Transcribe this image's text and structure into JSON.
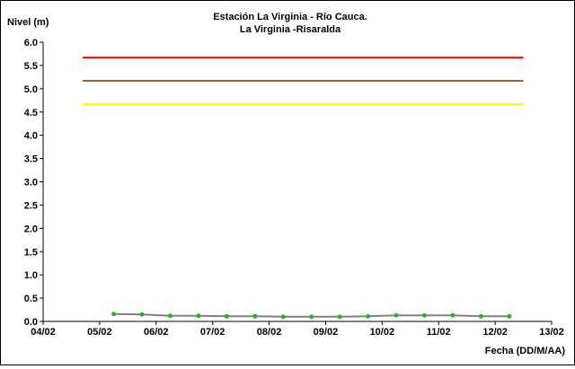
{
  "chart_data": {
    "type": "line",
    "title": "Estación La Virginia  - Río Cauca.",
    "subtitle": "La Virginia -Risaralda",
    "ylabel": "Nivel (m)",
    "xlabel": "Fecha (DD/M/AA)",
    "ylim": [
      0.0,
      6.0
    ],
    "y_ticks": [
      "0.0",
      "0.5",
      "1.0",
      "1.5",
      "2.0",
      "2.5",
      "3.0",
      "3.5",
      "4.0",
      "4.5",
      "5.0",
      "5.5",
      "6.0"
    ],
    "x_ticks": [
      "04/02",
      "05/02",
      "06/02",
      "07/02",
      "08/02",
      "09/02",
      "10/02",
      "11/02",
      "12/02",
      "13/02"
    ],
    "x_range_days": [
      4,
      13
    ],
    "grid": false,
    "thresholds": [
      {
        "value": 5.67,
        "color": "#ff0000",
        "x_start_day": 4.7,
        "x_end_day": 12.5
      },
      {
        "value": 5.17,
        "color": "#996633",
        "x_start_day": 4.7,
        "x_end_day": 12.5
      },
      {
        "value": 4.67,
        "color": "#ffff00",
        "x_start_day": 4.7,
        "x_end_day": 12.5
      }
    ],
    "series": [
      {
        "line_color": "#808080",
        "marker_color": "#33aa33",
        "x_day": [
          5.25,
          5.75,
          6.25,
          6.75,
          7.25,
          7.75,
          8.25,
          8.75,
          9.25,
          9.75,
          10.25,
          10.75,
          11.25,
          11.75,
          12.25
        ],
        "values": [
          0.16,
          0.15,
          0.12,
          0.12,
          0.11,
          0.11,
          0.1,
          0.1,
          0.1,
          0.11,
          0.13,
          0.13,
          0.13,
          0.11,
          0.11
        ]
      }
    ]
  }
}
